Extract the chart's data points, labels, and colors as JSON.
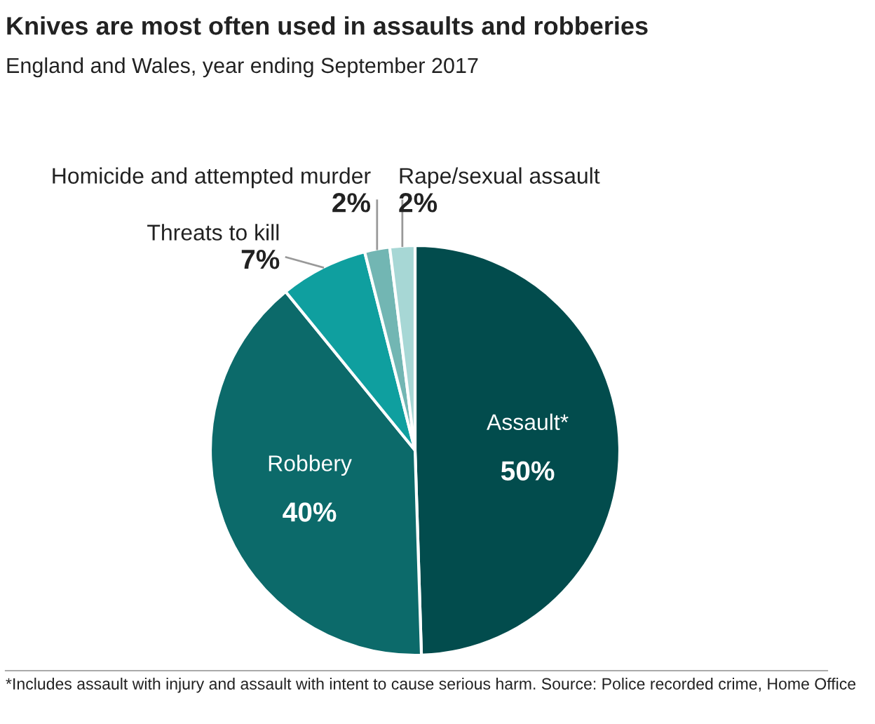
{
  "chart_data": {
    "type": "pie",
    "title": "Knives are most often used in assaults and robberies",
    "subtitle": "England and Wales, year ending September 2017",
    "categories": [
      "Assault*",
      "Robbery",
      "Threats to kill",
      "Homicide and attempted murder",
      "Rape/sexual assault"
    ],
    "values": [
      50,
      40,
      7,
      2,
      2
    ],
    "value_labels": [
      "50%",
      "40%",
      "7%",
      "2%",
      "2%"
    ],
    "colors": [
      "#024c4d",
      "#0c6a6a",
      "#0f9f9f",
      "#72b6b3",
      "#a7d7d5"
    ],
    "annotations": [
      "*Includes assault with injury and assault with intent to cause serious harm. Source: Police recorded crime, Home Office"
    ]
  }
}
